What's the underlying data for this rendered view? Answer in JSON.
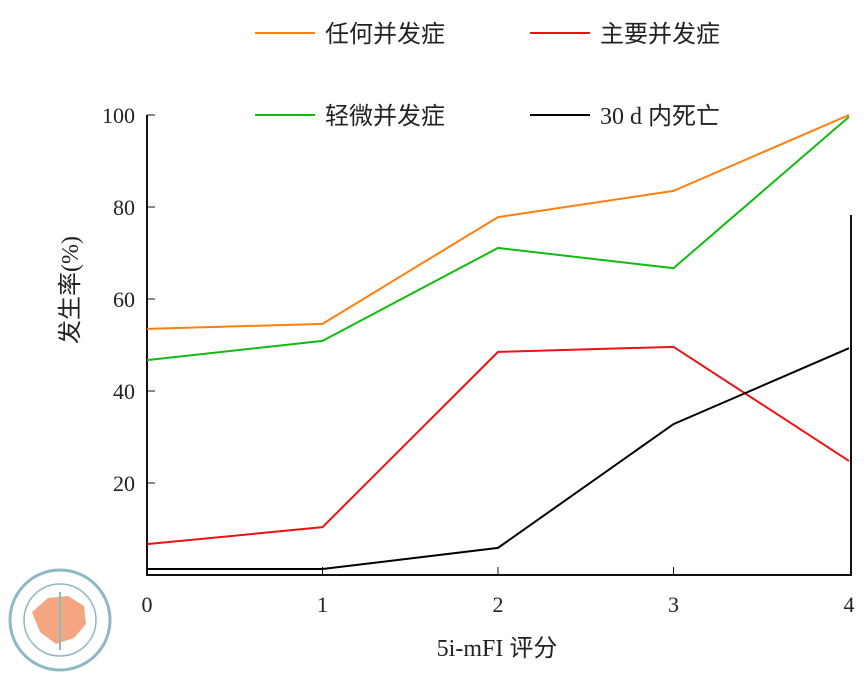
{
  "chart_data": {
    "type": "line",
    "title": "",
    "xlabel": "5i-mFI 评分",
    "ylabel": "发生率(%)",
    "x": [
      0,
      1,
      2,
      3,
      4
    ],
    "xticks": [
      "0",
      "1",
      "2",
      "3",
      "4"
    ],
    "yticks": [
      "20",
      "40",
      "60",
      "80",
      "100"
    ],
    "xlim": [
      0,
      4
    ],
    "ylim": [
      0,
      100
    ],
    "grid": false,
    "legend_position": "top",
    "series": [
      {
        "name": "任何并发症",
        "color": "#ff7f0e",
        "values": [
          53.5,
          54.6,
          77.8,
          83.5,
          100
        ]
      },
      {
        "name": "主要并发症",
        "color": "#ee1111",
        "values": [
          6.7,
          10.4,
          48.5,
          49.6,
          24.8
        ]
      },
      {
        "name": "轻微并发症",
        "color": "#11bb11",
        "values": [
          46.7,
          50.9,
          71.1,
          66.7,
          99.6
        ]
      },
      {
        "name": "30 d 内死亡",
        "color": "#000000",
        "values": [
          1.3,
          1.3,
          5.9,
          32.8,
          49.3
        ]
      }
    ]
  },
  "logo": {
    "text": "中华医学会 CHINESE MEDICAL ASSOCIATION 1915"
  }
}
